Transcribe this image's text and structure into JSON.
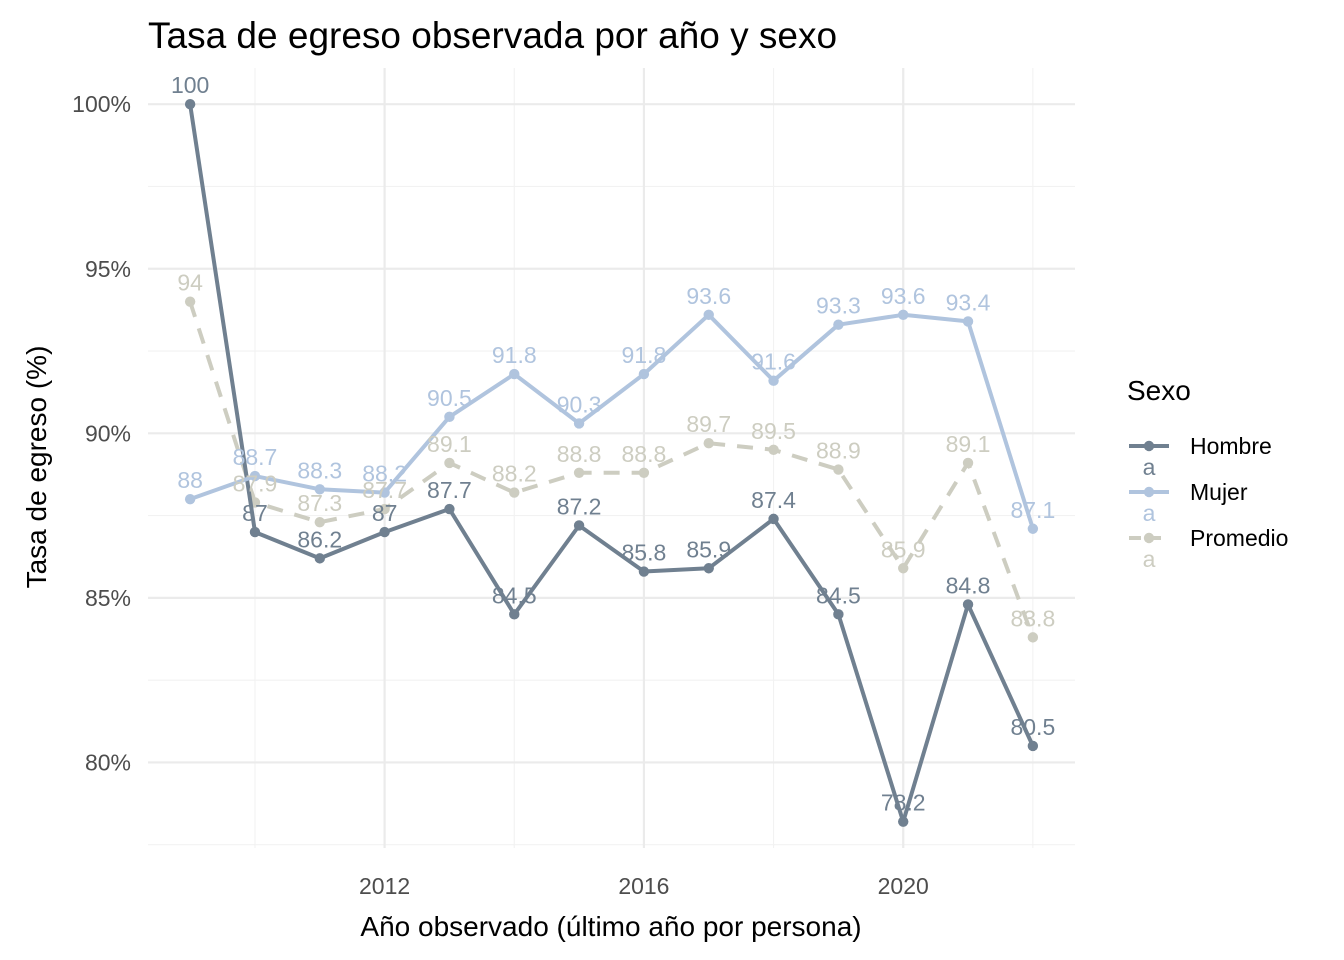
{
  "chart_data": {
    "type": "line",
    "title": "Tasa de egreso observada por año y sexo",
    "xlabel": "Año observado (último año por persona)",
    "ylabel": "Tasa de egreso (%)",
    "x": [
      2009,
      2010,
      2011,
      2012,
      2013,
      2014,
      2015,
      2016,
      2017,
      2018,
      2019,
      2020,
      2021,
      2022
    ],
    "xlim": [
      2008.35,
      2022.65
    ],
    "ylim": [
      77.4,
      101.1
    ],
    "x_ticks": [
      2012,
      2016,
      2020
    ],
    "x_tick_labels": [
      "2012",
      "2016",
      "2020"
    ],
    "y_ticks": [
      80,
      85,
      90,
      95,
      100
    ],
    "y_tick_labels": [
      "80%",
      "85%",
      "90%",
      "95%",
      "100%"
    ],
    "grid": true,
    "legend": {
      "title": "Sexo",
      "placement": "right",
      "key_glyph": "a"
    },
    "series": [
      {
        "name": "Hombre",
        "color": "#708090",
        "dash": "solid",
        "values": [
          100,
          87,
          86.2,
          87,
          87.7,
          84.5,
          87.2,
          85.8,
          85.9,
          87.4,
          84.5,
          78.2,
          84.8,
          80.5
        ],
        "labels": [
          "100",
          "87",
          "86.2",
          "87",
          "87.7",
          "84.5",
          "87.2",
          "85.8",
          "85.9",
          "87.4",
          "84.5",
          "78.2",
          "84.8",
          "80.5"
        ]
      },
      {
        "name": "Mujer",
        "color": "#B0C4DE",
        "dash": "solid",
        "values": [
          88,
          88.7,
          88.3,
          88.2,
          90.5,
          91.8,
          90.3,
          91.8,
          93.6,
          91.6,
          93.3,
          93.6,
          93.4,
          87.1
        ],
        "labels": [
          "88",
          "88.7",
          "88.3",
          "88.2",
          "90.5",
          "91.8",
          "90.3",
          "91.8",
          "93.6",
          "91.6",
          "93.3",
          "93.6",
          "93.4",
          "87.1"
        ]
      },
      {
        "name": "Promedio",
        "color": "#CDCDC1",
        "dash": "dashed",
        "values": [
          94,
          87.9,
          87.3,
          87.7,
          89.1,
          88.2,
          88.8,
          88.8,
          89.7,
          89.5,
          88.9,
          85.9,
          89.1,
          83.8
        ],
        "labels": [
          "94",
          "87.9",
          "87.3",
          "87.7",
          "89.1",
          "88.2",
          "88.8",
          "88.8",
          "89.7",
          "89.5",
          "88.9",
          "85.9",
          "89.1",
          "83.8"
        ]
      }
    ]
  }
}
